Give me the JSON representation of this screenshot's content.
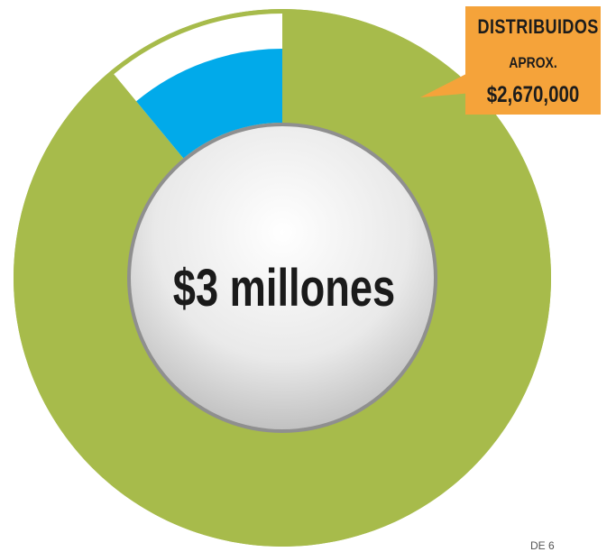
{
  "chart_data": {
    "type": "pie",
    "style": "donut",
    "total_label": "$3 millones",
    "total": 3000000,
    "series": [
      {
        "name": "DISTRIBUIDOS",
        "value": 2670000,
        "color": "#a7bb4b",
        "ring": "outer"
      },
      {
        "value": 330000,
        "color": "#ffffff",
        "ring": "outer"
      },
      {
        "value": 330000,
        "color": "#01aaea",
        "ring": "inner"
      }
    ],
    "callout": {
      "line1": "DISTRIBUIDOS",
      "line2": "APROX.",
      "line3": "$2,670,000",
      "color": "#f5a33a"
    }
  },
  "footer_text": "DE 6"
}
